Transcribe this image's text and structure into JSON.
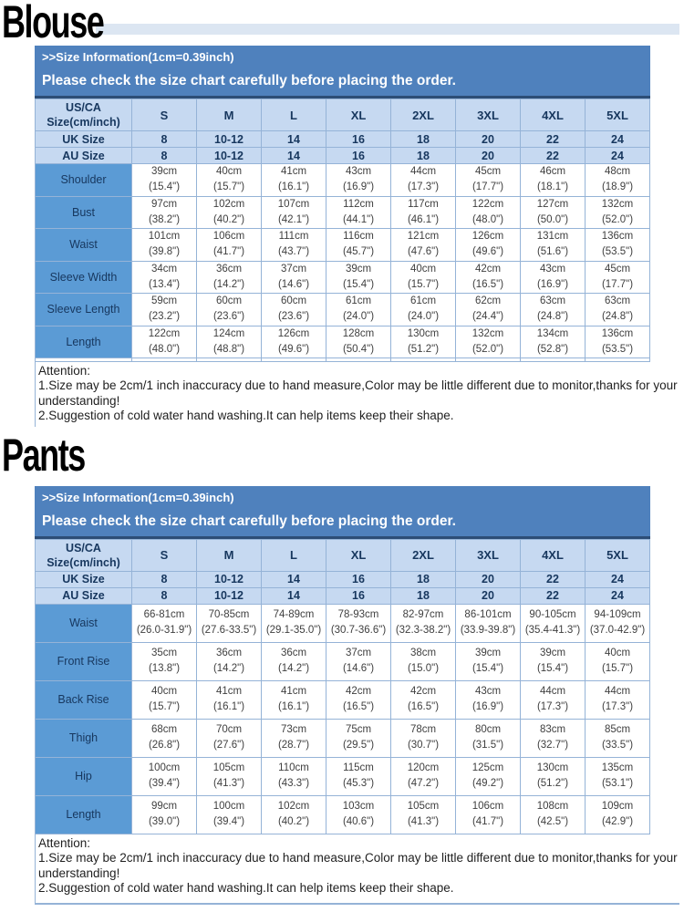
{
  "doc": {
    "colors": {
      "banner_blue": "#4f81bd",
      "banner_border": "#2c4d76",
      "header_cell_blue": "#c6d9f1",
      "label_cell_blue": "#5b9bd5",
      "grid_line": "#95b3d7",
      "navy_text": "#17375e",
      "body_text": "#3f3f3f",
      "pale_strip": "#dce6f2"
    },
    "sections": [
      {
        "id": "blouse",
        "title": "Blouse",
        "banner": {
          "line1": ">>Size Information(1cm=0.39inch)",
          "line2": "Please check the size chart carefully before placing the order."
        },
        "table": {
          "corner_label": "US/CA\nSize(cm/inch)",
          "size_headers": [
            "S",
            "M",
            "L",
            "XL",
            "2XL",
            "3XL",
            "4XL",
            "5XL"
          ],
          "uk": {
            "label": "UK Size",
            "values": [
              "8",
              "10-12",
              "14",
              "16",
              "18",
              "20",
              "22",
              "24"
            ]
          },
          "au": {
            "label": "AU Size",
            "values": [
              "8",
              "10-12",
              "14",
              "16",
              "18",
              "20",
              "22",
              "24"
            ]
          },
          "measurements": [
            {
              "label": "Shoulder",
              "cells": [
                "39cm\n(15.4\")",
                "40cm\n(15.7\")",
                "41cm\n(16.1\")",
                "43cm\n(16.9\")",
                "44cm\n(17.3\")",
                "45cm\n(17.7\")",
                "46cm\n(18.1\")",
                "48cm\n(18.9\")"
              ]
            },
            {
              "label": "Bust",
              "cells": [
                "97cm\n(38.2\")",
                "102cm\n(40.2\")",
                "107cm\n(42.1\")",
                "112cm\n(44.1\")",
                "117cm\n(46.1\")",
                "122cm\n(48.0\")",
                "127cm\n(50.0\")",
                "132cm\n(52.0\")"
              ]
            },
            {
              "label": "Waist",
              "cells": [
                "101cm\n(39.8\")",
                "106cm\n(41.7\")",
                "111cm\n(43.7\")",
                "116cm\n(45.7\")",
                "121cm\n(47.6\")",
                "126cm\n(49.6\")",
                "131cm\n(51.6\")",
                "136cm\n(53.5\")"
              ]
            },
            {
              "label": "Sleeve Width",
              "cells": [
                "34cm\n(13.4\")",
                "36cm\n(14.2\")",
                "37cm\n(14.6\")",
                "39cm\n(15.4\")",
                "40cm\n(15.7\")",
                "42cm\n(16.5\")",
                "43cm\n(16.9\")",
                "45cm\n(17.7\")"
              ]
            },
            {
              "label": "Sleeve Length",
              "cells": [
                "59cm\n(23.2\")",
                "60cm\n(23.6\")",
                "60cm\n(23.6\")",
                "61cm\n(24.0\")",
                "61cm\n(24.0\")",
                "62cm\n(24.4\")",
                "63cm\n(24.8\")",
                "63cm\n(24.8\")"
              ]
            },
            {
              "label": "Length",
              "cells": [
                "122cm\n(48.0\")",
                "124cm\n(48.8\")",
                "126cm\n(49.6\")",
                "128cm\n(50.4\")",
                "130cm\n(51.2\")",
                "132cm\n(52.0\")",
                "134cm\n(52.8\")",
                "136cm\n(53.5\")"
              ]
            }
          ]
        },
        "attention": {
          "heading": "Attention:",
          "notes": [
            "1.Size may be 2cm/1 inch inaccuracy due to hand measure,Color may be little different due to monitor,thanks for your understanding!",
            "2.Suggestion of cold water hand washing.It can help items keep their shape."
          ]
        }
      },
      {
        "id": "pants",
        "title": "Pants",
        "banner": {
          "line1": ">>Size Information(1cm=0.39inch)",
          "line2": "Please check the size chart carefully before placing the order."
        },
        "table": {
          "corner_label": "US/CA\nSize(cm/inch)",
          "size_headers": [
            "S",
            "M",
            "L",
            "XL",
            "2XL",
            "3XL",
            "4XL",
            "5XL"
          ],
          "uk": {
            "label": "UK Size",
            "values": [
              "8",
              "10-12",
              "14",
              "16",
              "18",
              "20",
              "22",
              "24"
            ]
          },
          "au": {
            "label": "AU Size",
            "values": [
              "8",
              "10-12",
              "14",
              "16",
              "18",
              "20",
              "22",
              "24"
            ]
          },
          "measurements": [
            {
              "label": "Waist",
              "cells": [
                "66-81cm\n(26.0-31.9\")",
                "70-85cm\n(27.6-33.5\")",
                "74-89cm\n(29.1-35.0\")",
                "78-93cm\n(30.7-36.6\")",
                "82-97cm\n(32.3-38.2\")",
                "86-101cm\n(33.9-39.8\")",
                "90-105cm\n(35.4-41.3\")",
                "94-109cm\n(37.0-42.9\")"
              ]
            },
            {
              "label": "Front Rise",
              "cells": [
                "35cm\n(13.8\")",
                "36cm\n(14.2\")",
                "36cm\n(14.2\")",
                "37cm\n(14.6\")",
                "38cm\n(15.0\")",
                "39cm\n(15.4\")",
                "39cm\n(15.4\")",
                "40cm\n(15.7\")"
              ]
            },
            {
              "label": "Back Rise",
              "cells": [
                "40cm\n(15.7\")",
                "41cm\n(16.1\")",
                "41cm\n(16.1\")",
                "42cm\n(16.5\")",
                "42cm\n(16.5\")",
                "43cm\n(16.9\")",
                "44cm\n(17.3\")",
                "44cm\n(17.3\")"
              ]
            },
            {
              "label": "Thigh",
              "cells": [
                "68cm\n(26.8\")",
                "70cm\n(27.6\")",
                "73cm\n(28.7\")",
                "75cm\n(29.5\")",
                "78cm\n(30.7\")",
                "80cm\n(31.5\")",
                "83cm\n(32.7\")",
                "85cm\n(33.5\")"
              ]
            },
            {
              "label": "Hip",
              "cells": [
                "100cm\n(39.4\")",
                "105cm\n(41.3\")",
                "110cm\n(43.3\")",
                "115cm\n(45.3\")",
                "120cm\n(47.2\")",
                "125cm\n(49.2\")",
                "130cm\n(51.2\")",
                "135cm\n(53.1\")"
              ]
            },
            {
              "label": "Length",
              "cells": [
                "99cm\n(39.0\")",
                "100cm\n(39.4\")",
                "102cm\n(40.2\")",
                "103cm\n(40.6\")",
                "105cm\n(41.3\")",
                "106cm\n(41.7\")",
                "108cm\n(42.5\")",
                "109cm\n(42.9\")"
              ]
            }
          ]
        },
        "attention": {
          "heading": "Attention:",
          "notes": [
            "1.Size may be 2cm/1 inch inaccuracy due to hand measure,Color may be little different due to monitor,thanks for your understanding!",
            "2.Suggestion of cold water hand washing.It can help items keep their shape."
          ]
        }
      }
    ]
  }
}
